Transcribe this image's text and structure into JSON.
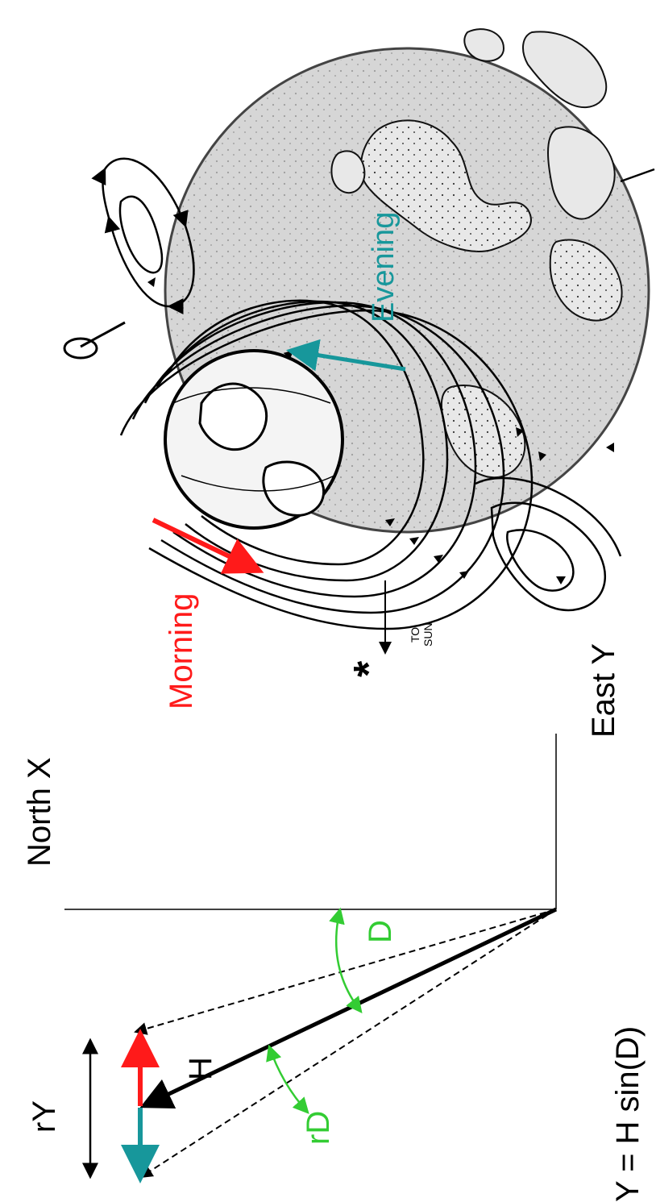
{
  "labels": {
    "morning": "Morning",
    "evening": "Evening",
    "to_sun": "TO\nSUN",
    "to_sun_line1": "TO",
    "to_sun_line2": "SUN",
    "north": "North X",
    "east": "East Y",
    "r_y": "rY",
    "r_d": "rD",
    "h": "H",
    "d": "D",
    "formula": "Y = H sin(D)",
    "asterisk": "*"
  },
  "colors": {
    "morning": "#ff1a1a",
    "evening": "#17979b",
    "angle": "#33cc33",
    "globe_fill": "#d6d6d6",
    "ink": "#000000"
  }
}
